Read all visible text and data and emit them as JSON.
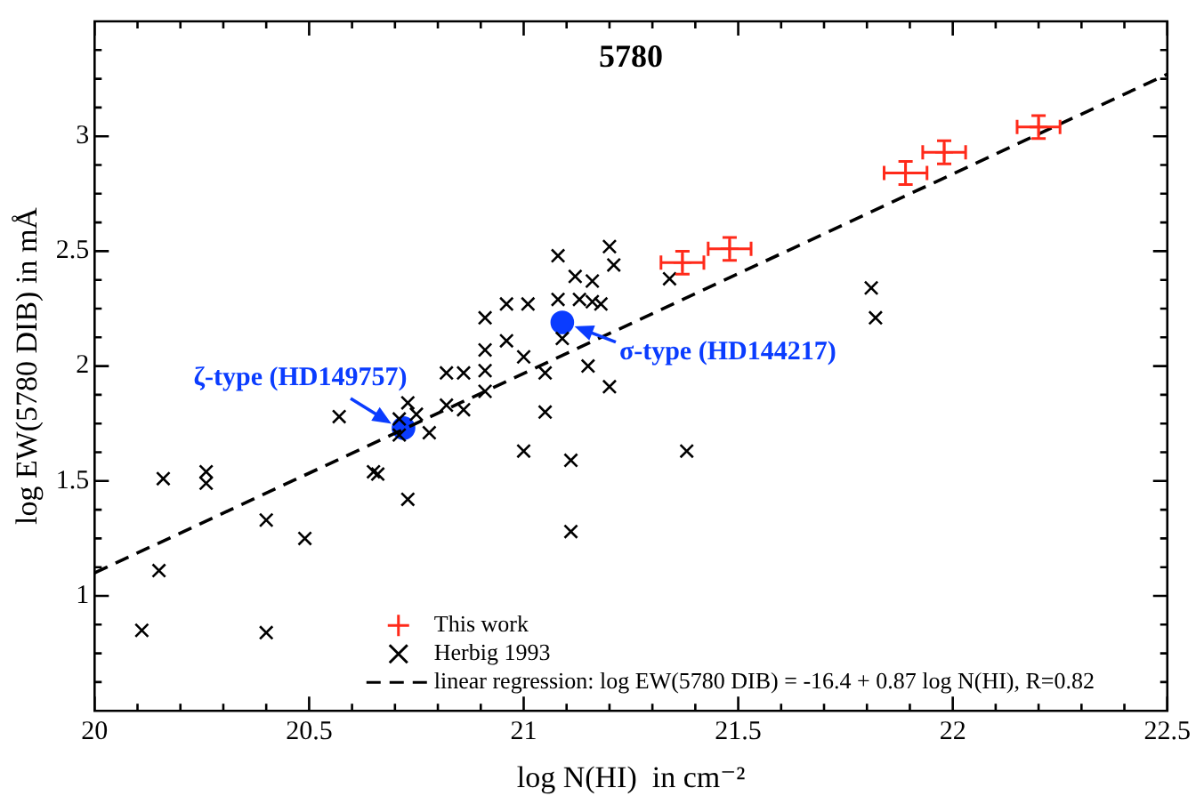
{
  "chart_data": {
    "type": "scatter",
    "title": "5780",
    "xlabel": "log N(HI)  in cm⁻²",
    "ylabel": "log EW(5780 DIB) in mÅ",
    "xlim": [
      20,
      22.5
    ],
    "ylim": [
      0.5,
      3.5
    ],
    "xticks": [
      20,
      {
        "value": 20.1,
        "label": null
      },
      {
        "value": 20.2,
        "label": null
      },
      {
        "value": 20.3,
        "label": null
      },
      {
        "value": 20.4,
        "label": null
      },
      20.5,
      {
        "value": 20.6,
        "label": null
      },
      {
        "value": 20.7,
        "label": null
      },
      {
        "value": 20.8,
        "label": null
      },
      {
        "value": 20.9,
        "label": null
      },
      21,
      {
        "value": 21.1,
        "label": null
      },
      {
        "value": 21.2,
        "label": null
      },
      {
        "value": 21.3,
        "label": null
      },
      {
        "value": 21.4,
        "label": null
      },
      21.5,
      {
        "value": 21.6,
        "label": null
      },
      {
        "value": 21.7,
        "label": null
      },
      {
        "value": 21.8,
        "label": null
      },
      {
        "value": 21.9,
        "label": null
      },
      22,
      {
        "value": 22.1,
        "label": null
      },
      {
        "value": 22.2,
        "label": null
      },
      {
        "value": 22.3,
        "label": null
      },
      {
        "value": 22.4,
        "label": null
      },
      22.5
    ],
    "yticks": [
      {
        "value": 0.625,
        "label": null
      },
      {
        "value": 0.75,
        "label": null
      },
      {
        "value": 0.875,
        "label": null
      },
      1,
      {
        "value": 1.125,
        "label": null
      },
      {
        "value": 1.25,
        "label": null
      },
      {
        "value": 1.375,
        "label": null
      },
      1.5,
      {
        "value": 1.625,
        "label": null
      },
      {
        "value": 1.75,
        "label": null
      },
      {
        "value": 1.875,
        "label": null
      },
      2,
      {
        "value": 2.125,
        "label": null
      },
      {
        "value": 2.25,
        "label": null
      },
      {
        "value": 2.375,
        "label": null
      },
      2.5,
      {
        "value": 2.625,
        "label": null
      },
      {
        "value": 2.75,
        "label": null
      },
      {
        "value": 2.875,
        "label": null
      },
      3,
      {
        "value": 3.125,
        "label": null
      },
      {
        "value": 3.25,
        "label": null
      },
      {
        "value": 3.375,
        "label": null
      }
    ],
    "grid": false,
    "legend": "bottom",
    "series": [
      {
        "name": "This work",
        "type": "scatter",
        "color": "#ff2a1a",
        "marker": "cross",
        "x": [
          21.37,
          21.48,
          21.89,
          21.98,
          22.2
        ],
        "values": [
          2.45,
          2.51,
          2.84,
          2.93,
          3.04
        ],
        "errors": [
          0.05,
          0.05,
          0.05,
          0.05,
          0.05
        ],
        "xerrors": [
          0.05,
          0.05,
          0.05,
          0.05,
          0.05
        ]
      },
      {
        "name": "Herbig 1993",
        "type": "scatter",
        "color": "#000000",
        "marker": "cross",
        "x": [
          20.11,
          20.15,
          20.16,
          20.26,
          20.26,
          20.4,
          20.4,
          20.49,
          20.57,
          20.65,
          20.66,
          20.73,
          20.73,
          20.75,
          20.71,
          20.71,
          20.78,
          20.82,
          20.82,
          20.86,
          20.86,
          20.91,
          20.91,
          20.91,
          20.91,
          20.96,
          20.96,
          21.01,
          21.0,
          21.05,
          21.05,
          21.0,
          21.08,
          21.08,
          21.09,
          21.12,
          21.13,
          21.16,
          21.16,
          21.18,
          21.15,
          21.2,
          21.2,
          21.21,
          21.11,
          21.11,
          21.38,
          21.81,
          21.82,
          21.34
        ],
        "values": [
          0.85,
          1.11,
          1.51,
          1.54,
          1.49,
          1.33,
          0.84,
          1.25,
          1.78,
          1.54,
          1.53,
          1.42,
          1.84,
          1.79,
          1.77,
          1.7,
          1.71,
          1.97,
          1.83,
          1.97,
          1.81,
          2.21,
          2.07,
          1.98,
          1.89,
          2.27,
          2.11,
          2.27,
          2.04,
          1.97,
          1.8,
          1.63,
          2.48,
          2.29,
          2.12,
          2.39,
          2.29,
          2.37,
          2.28,
          2.27,
          2.0,
          1.91,
          2.52,
          2.44,
          1.59,
          1.28,
          1.63,
          2.34,
          2.21,
          2.38
        ]
      },
      {
        "name": "linear regression: log EW(5780 DIB) = -16.4 + 0.87 log N(HI), R=0.82",
        "type": "line",
        "color": "#000000",
        "line_style": "dashed",
        "marker": "none",
        "x": [
          20,
          22.5
        ],
        "values": [
          1.1,
          3.27
        ]
      },
      {
        "type": "scatter",
        "color": "#0a3cff",
        "marker": "circle",
        "x": [
          20.72,
          21.09
        ],
        "values": [
          1.73,
          2.19
        ]
      }
    ],
    "annotations": [
      {
        "text": "ζ-type (HD149757)",
        "x": 20.72,
        "y": 1.73
      },
      {
        "text": "σ-type (HD144217)",
        "x": 21.09,
        "y": 2.19
      }
    ]
  }
}
